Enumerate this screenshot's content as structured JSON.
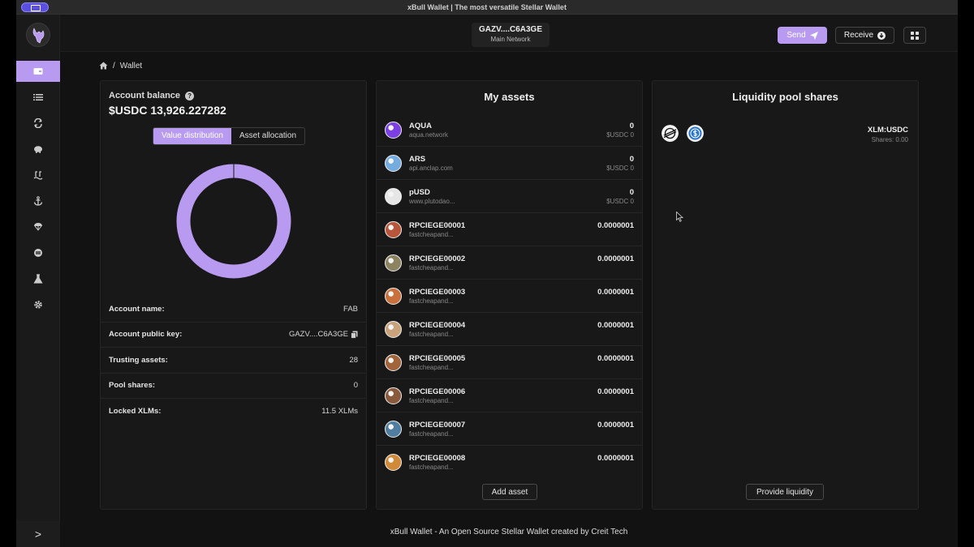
{
  "window": {
    "title": "xBull Wallet | The most versatile Stellar Wallet"
  },
  "sidebar": {
    "items": [
      {
        "icon": "wallet-icon",
        "active": true
      },
      {
        "icon": "list-icon"
      },
      {
        "icon": "swap-icon"
      },
      {
        "icon": "piggy-bank-icon"
      },
      {
        "icon": "liquidity-pool-icon"
      },
      {
        "icon": "anchor-icon"
      },
      {
        "icon": "airdrop-icon"
      },
      {
        "icon": "soroban-icon"
      },
      {
        "icon": "lab-flask-icon"
      },
      {
        "icon": "gear-icon"
      }
    ],
    "collapse_label": ">"
  },
  "header": {
    "account_key": "GAZV....C6A3GE",
    "network": "Main Network",
    "send_label": "Send",
    "receive_label": "Receive"
  },
  "breadcrumb": {
    "current": "Wallet",
    "separator": "/"
  },
  "balance_panel": {
    "label": "Account balance",
    "help": "?",
    "value": "$USDC 13,926.227282",
    "tabs": [
      "Value distribution",
      "Asset allocation"
    ],
    "active_tab": 0,
    "info": [
      {
        "label": "Account name:",
        "value": "FAB"
      },
      {
        "label": "Account public key:",
        "value": "GAZV....C6A3GE"
      },
      {
        "label": "Trusting assets:",
        "value": "28"
      },
      {
        "label": "Pool shares:",
        "value": "0"
      },
      {
        "label": "Locked XLMs:",
        "value": "11.5 XLMs"
      }
    ]
  },
  "chart_data": {
    "type": "pie",
    "title": "",
    "categories": [
      ""
    ],
    "values": [
      100
    ],
    "colors": [
      "#b89bf0"
    ]
  },
  "assets_panel": {
    "title": "My assets",
    "assets": [
      {
        "code": "AQUA",
        "domain": "aqua.network",
        "balance": "0",
        "value": "$USDC 0",
        "color": "#7b3fe4"
      },
      {
        "code": "ARS",
        "domain": "api.anclap.com",
        "balance": "0",
        "value": "$USDC 0",
        "color": "#74acdf"
      },
      {
        "code": "pUSD",
        "domain": "www.plutodao...",
        "balance": "0",
        "value": "$USDC 0",
        "color": "#e6e6e6"
      },
      {
        "code": "RPCIEGE00001",
        "domain": "fastcheapand...",
        "balance": "0.0000001",
        "value": "",
        "color": "#b8553a"
      },
      {
        "code": "RPCIEGE00002",
        "domain": "fastcheapand...",
        "balance": "0.0000001",
        "value": "",
        "color": "#8c8360"
      },
      {
        "code": "RPCIEGE00003",
        "domain": "fastcheapand...",
        "balance": "0.0000001",
        "value": "",
        "color": "#c9703c"
      },
      {
        "code": "RPCIEGE00004",
        "domain": "fastcheapand...",
        "balance": "0.0000001",
        "value": "",
        "color": "#c8a27a"
      },
      {
        "code": "RPCIEGE00005",
        "domain": "fastcheapand...",
        "balance": "0.0000001",
        "value": "",
        "color": "#a2653b"
      },
      {
        "code": "RPCIEGE00006",
        "domain": "fastcheapand...",
        "balance": "0.0000001",
        "value": "",
        "color": "#8a5a3c"
      },
      {
        "code": "RPCIEGE00007",
        "domain": "fastcheapand...",
        "balance": "0.0000001",
        "value": "",
        "color": "#4f7ea0"
      },
      {
        "code": "RPCIEGE00008",
        "domain": "fastcheapand...",
        "balance": "0.0000001",
        "value": "",
        "color": "#d08a3a"
      }
    ],
    "add_label": "Add asset"
  },
  "pool_panel": {
    "title": "Liquidity pool shares",
    "pools": [
      {
        "pair": "XLM:USDC",
        "shares": "Shares: 0.00"
      }
    ],
    "provide_label": "Provide liquidity"
  },
  "footer": {
    "text": "xBull Wallet - An Open Source Stellar Wallet created by Creit Tech"
  }
}
